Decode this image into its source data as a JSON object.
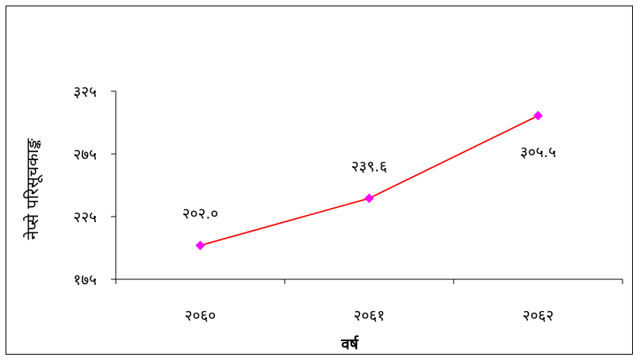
{
  "chart_data": {
    "type": "line",
    "title": "",
    "xlabel": "वर्ष",
    "ylabel": "नेप्से परिसूचकाङ्क",
    "categories": [
      "२०६०",
      "२०६१",
      "२०६२"
    ],
    "x": [
      2060,
      2061,
      2062
    ],
    "series": [
      {
        "values": [
          202.0,
          239.6,
          305.5
        ],
        "labels": [
          "२०२.०",
          "२३९.६",
          "३०५.५"
        ],
        "color": "#ff0000",
        "marker": "diamond",
        "marker_color": "#ff00ff"
      }
    ],
    "ylim": [
      175,
      325
    ],
    "yticks": [
      175,
      225,
      275,
      325
    ],
    "ytick_labels": [
      "१७५",
      "२२५",
      "२७५",
      "३२५"
    ],
    "grid": false,
    "legend": "none"
  }
}
